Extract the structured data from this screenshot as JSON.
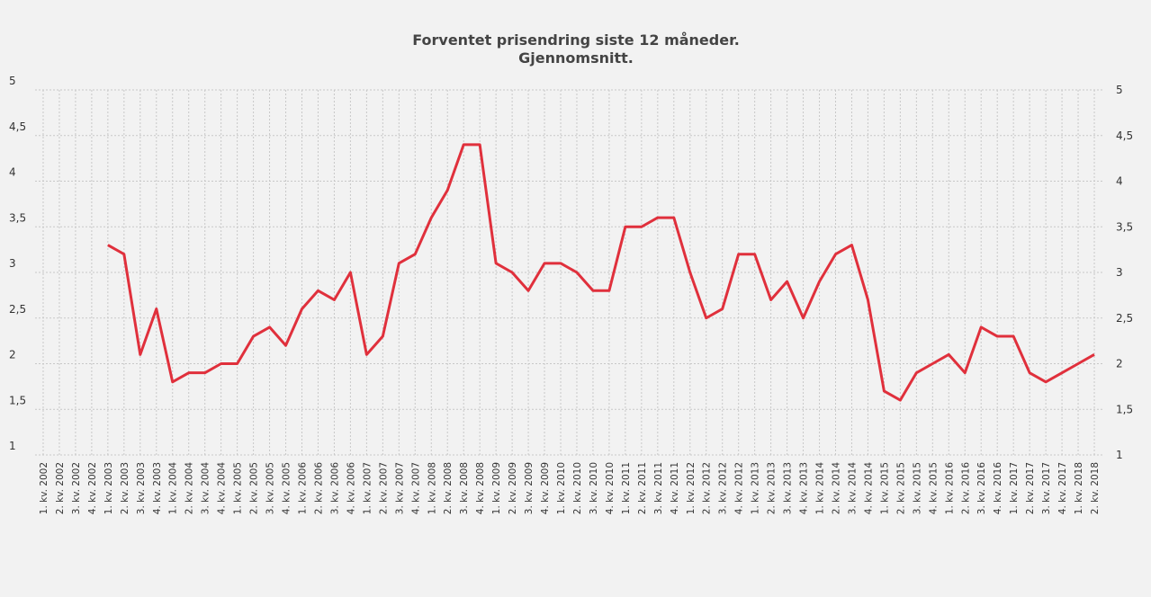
{
  "chart_data": {
    "type": "line",
    "title": "Forventet prisendring siste 12 måneder.",
    "subtitle": "Gjennomsnitt.",
    "categories": [
      "1. kv. 2002",
      "2. kv. 2002",
      "3. kv. 2002",
      "4. kv. 2002",
      "1. kv. 2003",
      "2. kv. 2003",
      "3. kv. 2003",
      "4. kv. 2003",
      "1. kv. 2004",
      "2. kv. 2004",
      "3. kv. 2004",
      "4. kv. 2004",
      "1. kv. 2005",
      "2. kv. 2005",
      "3. kv. 2005",
      "4. kv. 2005",
      "1. kv. 2006",
      "2. kv. 2006",
      "3. kv. 2006",
      "4. kv. 2006",
      "1. kv. 2007",
      "2. kv. 2007",
      "3. kv. 2007",
      "4. kv. 2007",
      "1. kv. 2008",
      "2. kv. 2008",
      "3. kv. 2008",
      "4. kv. 2008",
      "1. kv. 2009",
      "2. kv. 2009",
      "3. kv. 2009",
      "4. kv. 2009",
      "1. kv. 2010",
      "2. kv. 2010",
      "3. kv. 2010",
      "4. kv. 2010",
      "1. kv. 2011",
      "2. kv. 2011",
      "3. kv. 2011",
      "4. kv. 2011",
      "1. kv. 2012",
      "2. kv. 2012",
      "3. kv. 2012",
      "4. kv. 2012",
      "1. kv. 2013",
      "2. kv. 2013",
      "3. kv. 2013",
      "4. kv. 2013",
      "1. kv. 2014",
      "2. kv. 2014",
      "3. kv. 2014",
      "4. kv. 2014",
      "1. kv. 2015",
      "2. kv. 2015",
      "3. kv. 2015",
      "4. kv. 2015",
      "1. kv. 2016",
      "2. kv. 2016",
      "3. kv. 2016",
      "4. kv. 2016",
      "1. kv. 2017",
      "2. kv. 2017",
      "3. kv. 2017",
      "4. kv. 2017",
      "1. kv. 2018",
      "2. kv. 2018"
    ],
    "values": [
      null,
      null,
      null,
      null,
      3.3,
      3.2,
      2.1,
      2.6,
      1.8,
      1.9,
      1.9,
      2.0,
      2.0,
      2.3,
      2.4,
      2.2,
      2.6,
      2.8,
      2.7,
      3.0,
      2.1,
      2.3,
      3.1,
      3.2,
      3.6,
      3.9,
      4.4,
      4.4,
      3.1,
      3.0,
      2.8,
      3.1,
      3.1,
      3.0,
      2.8,
      2.8,
      3.5,
      3.5,
      3.6,
      3.6,
      3.0,
      2.5,
      2.6,
      3.2,
      3.2,
      2.7,
      2.9,
      2.5,
      2.9,
      3.2,
      3.3,
      2.7,
      1.7,
      1.6,
      1.9,
      2.0,
      2.1,
      1.9,
      2.4,
      2.3,
      2.3,
      1.9,
      1.8,
      1.9,
      2.0,
      2.1
    ],
    "color": "#e0303c",
    "ylim": [
      1,
      5
    ],
    "yticks": [
      1,
      {
        "value": 1.5,
        "label": "1,5"
      },
      2,
      {
        "value": 2.5,
        "label": "2,5"
      },
      3,
      {
        "value": 3.5,
        "label": "3,5"
      },
      4,
      {
        "value": 4.5,
        "label": "4,5"
      },
      5
    ],
    "y2lim": [
      1,
      5
    ],
    "y2ticks": [
      1,
      {
        "value": 1.5,
        "label": "1,5"
      },
      2,
      {
        "value": 2.5,
        "label": "2,5"
      },
      3,
      {
        "value": 3.5,
        "label": "3,5"
      },
      4,
      {
        "value": 4.5,
        "label": "4,5"
      },
      5
    ],
    "grid": true
  }
}
